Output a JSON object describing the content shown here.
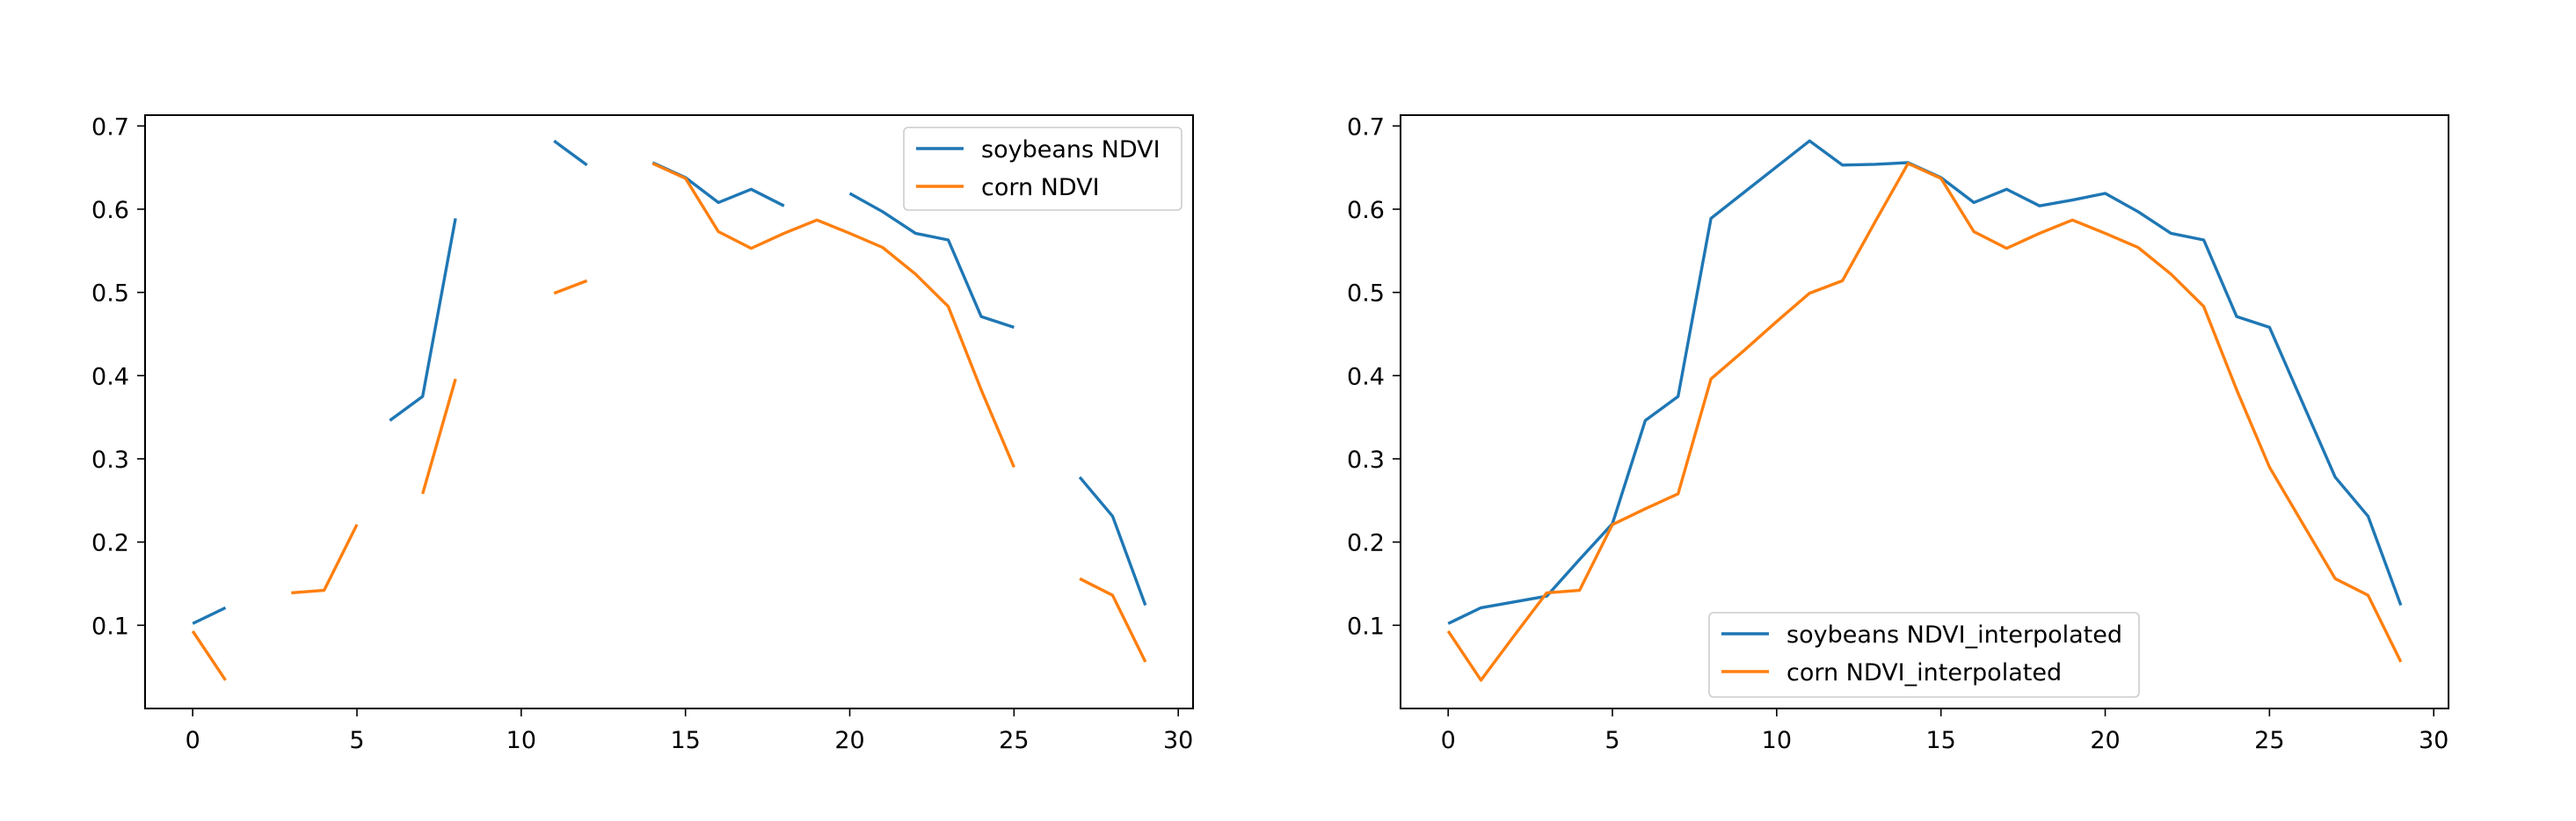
{
  "chart_data": [
    {
      "type": "line",
      "x": [
        0,
        1,
        2,
        3,
        4,
        5,
        6,
        7,
        8,
        9,
        10,
        11,
        12,
        13,
        14,
        15,
        16,
        17,
        18,
        19,
        20,
        21,
        22,
        23,
        24,
        25,
        26,
        27,
        28,
        29
      ],
      "series": [
        {
          "name": "soybeans NDVI",
          "color": "#1f77b4",
          "values": [
            0.102,
            0.121,
            null,
            null,
            null,
            null,
            0.346,
            0.375,
            0.589,
            null,
            null,
            0.682,
            0.653,
            null,
            0.656,
            0.638,
            0.608,
            0.624,
            0.604,
            null,
            0.619,
            0.597,
            0.571,
            0.563,
            0.471,
            0.458,
            null,
            0.278,
            0.231,
            0.124
          ]
        },
        {
          "name": "corn NDVI",
          "color": "#ff7f0e",
          "values": [
            0.093,
            0.034,
            null,
            0.139,
            0.142,
            0.221,
            null,
            0.258,
            0.396,
            null,
            null,
            0.499,
            0.514,
            null,
            0.655,
            0.637,
            0.573,
            0.553,
            0.571,
            0.587,
            0.571,
            0.554,
            0.522,
            0.483,
            0.383,
            0.29,
            null,
            0.156,
            0.136,
            0.056
          ]
        }
      ],
      "xlim": [
        -1.45,
        30.45
      ],
      "ylim": [
        0.0,
        0.713
      ],
      "xticks": [
        "0",
        "5",
        "10",
        "15",
        "20",
        "25",
        "30"
      ],
      "yticks": [
        "0.1",
        "0.2",
        "0.3",
        "0.4",
        "0.5",
        "0.6",
        "0.7"
      ],
      "legend": "upper right",
      "grid": false
    },
    {
      "type": "line",
      "x": [
        0,
        1,
        2,
        3,
        4,
        5,
        6,
        7,
        8,
        9,
        10,
        11,
        12,
        13,
        14,
        15,
        16,
        17,
        18,
        19,
        20,
        21,
        22,
        23,
        24,
        25,
        26,
        27,
        28,
        29
      ],
      "series": [
        {
          "name": "soybeans NDVI_interpolated",
          "color": "#1f77b4",
          "values": [
            0.102,
            0.121,
            0.128,
            0.135,
            0.179,
            0.222,
            0.346,
            0.375,
            0.589,
            0.62,
            0.651,
            0.682,
            0.653,
            0.654,
            0.656,
            0.638,
            0.608,
            0.624,
            0.604,
            0.611,
            0.619,
            0.597,
            0.571,
            0.563,
            0.471,
            0.458,
            0.368,
            0.278,
            0.231,
            0.124
          ]
        },
        {
          "name": "corn NDVI_interpolated",
          "color": "#ff7f0e",
          "values": [
            0.093,
            0.034,
            0.087,
            0.139,
            0.142,
            0.221,
            0.24,
            0.258,
            0.396,
            0.43,
            0.465,
            0.499,
            0.514,
            0.585,
            0.655,
            0.637,
            0.573,
            0.553,
            0.571,
            0.587,
            0.571,
            0.554,
            0.522,
            0.483,
            0.383,
            0.29,
            0.223,
            0.156,
            0.136,
            0.056
          ]
        }
      ],
      "xlim": [
        -1.45,
        30.45
      ],
      "ylim": [
        0.0,
        0.713
      ],
      "xticks": [
        "0",
        "5",
        "10",
        "15",
        "20",
        "25",
        "30"
      ],
      "yticks": [
        "0.1",
        "0.2",
        "0.3",
        "0.4",
        "0.5",
        "0.6",
        "0.7"
      ],
      "legend": "lower center",
      "grid": false
    }
  ]
}
